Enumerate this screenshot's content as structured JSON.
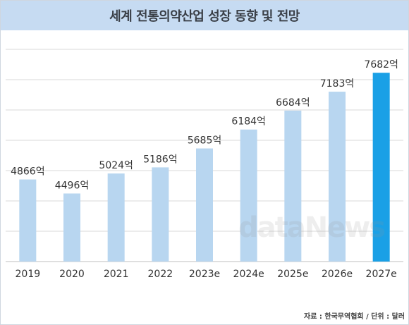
{
  "chart_data": {
    "type": "bar",
    "title": "세계 전통의약산업 성장 동향 및 전망",
    "categories": [
      "2019",
      "2020",
      "2021",
      "2022",
      "2023e",
      "2024e",
      "2025e",
      "2026e",
      "2027e"
    ],
    "values": [
      4866,
      4496,
      5024,
      5186,
      5685,
      6184,
      6684,
      7183,
      7682
    ],
    "value_labels": [
      "4866억",
      "4496억",
      "5024억",
      "5186억",
      "5685억",
      "6184억",
      "6684억",
      "7183억",
      "7682억"
    ],
    "unit": "억",
    "ylim": [
      2700,
      8300
    ],
    "grid": true,
    "colors": {
      "bar": "#b8d6f0",
      "highlight_bar": "#1aa0e6",
      "grid": "#d9d9d9"
    },
    "highlight_index": 8
  },
  "watermark": "dataNews",
  "source": "자료 : 한국무역협회 / 단위 : 달러"
}
